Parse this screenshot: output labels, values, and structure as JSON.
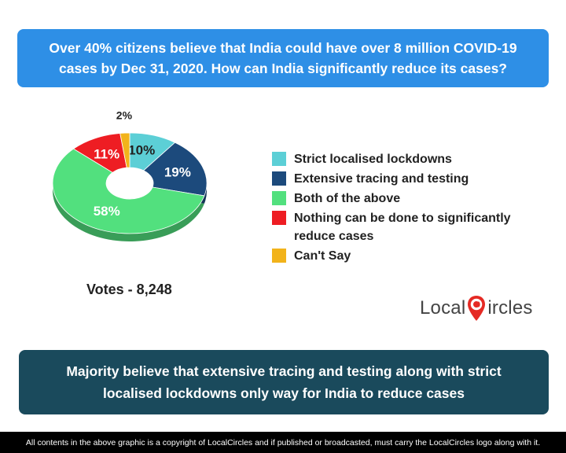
{
  "header": {
    "title": "Over 40% citizens believe that India could have over 8 million COVID-19 cases by Dec 31, 2020. How can India significantly reduce its cases?"
  },
  "chart_data": {
    "type": "pie",
    "categories": [
      "Strict localised lockdowns",
      "Extensive tracing and testing",
      "Both of the above",
      "Nothing can be done to significantly reduce cases",
      "Can't Say"
    ],
    "values": [
      10,
      19,
      58,
      11,
      2
    ],
    "labels": [
      "10%",
      "19%",
      "58%",
      "11%",
      "2%"
    ],
    "colors": [
      "#5ccfd6",
      "#1c4a7c",
      "#52e07e",
      "#ee1d23",
      "#f2b31b"
    ],
    "legend_position": "right"
  },
  "votes": "Votes - 8,248",
  "logo": {
    "prefix": "Local",
    "suffix": "ircles"
  },
  "summary": "Majority believe that extensive tracing and testing along with strict localised lockdowns only way for India to reduce cases",
  "footer": "All contents in the above graphic is a copyright of LocalCircles and if published or broadcasted, must carry the LocalCircles logo along with it."
}
